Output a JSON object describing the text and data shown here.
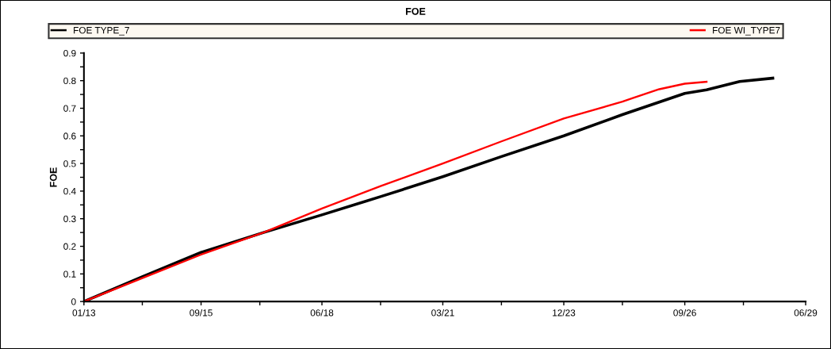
{
  "chart_data": {
    "type": "line",
    "title": "FOE",
    "ylabel": "FOE",
    "series": [
      {
        "name": "FOE TYPE_7",
        "color": "#000000",
        "x": [
          "2013-01",
          "2014-05",
          "2015-09",
          "2017-02",
          "2018-06",
          "2019-10",
          "2021-03",
          "2022-07",
          "2023-12",
          "2025-04",
          "2026-09",
          "2027-03",
          "2027-12",
          "2028-09"
        ],
        "values": [
          0,
          0.09,
          0.178,
          0.25,
          0.314,
          0.38,
          0.452,
          0.525,
          0.6,
          0.677,
          0.754,
          0.767,
          0.797,
          0.809
        ]
      },
      {
        "name": "FOE WI_TYPE7",
        "color": "#ff0000",
        "x": [
          "2013-01",
          "2014-05",
          "2015-09",
          "2017-02",
          "2018-06",
          "2019-10",
          "2021-03",
          "2022-07",
          "2023-12",
          "2025-04",
          "2025-07",
          "2026-02",
          "2026-09",
          "2027-03"
        ],
        "values": [
          0,
          0.085,
          0.17,
          0.25,
          0.337,
          0.418,
          0.5,
          0.58,
          0.663,
          0.724,
          0.738,
          0.769,
          0.789,
          0.796
        ]
      }
    ],
    "xlim": [
      "2013-01",
      "2029-06"
    ],
    "xticks": [
      {
        "value": "2013-01",
        "label": "01/13"
      },
      {
        "value": "2014-05",
        "label": null
      },
      {
        "value": "2015-09",
        "label": "09/15"
      },
      {
        "value": "2017-01",
        "label": null
      },
      {
        "value": "2018-06",
        "label": "06/18"
      },
      {
        "value": "2019-10",
        "label": null
      },
      {
        "value": "2021-03",
        "label": "03/21"
      },
      {
        "value": "2022-07",
        "label": null
      },
      {
        "value": "2023-12",
        "label": "12/23"
      },
      {
        "value": "2025-04",
        "label": null
      },
      {
        "value": "2026-09",
        "label": "09/26"
      },
      {
        "value": "2028-01",
        "label": null
      },
      {
        "value": "2029-06",
        "label": "06/29"
      }
    ],
    "ylim": [
      0,
      0.9
    ],
    "yticks": [
      0,
      {
        "value": 0.05,
        "label": null
      },
      0.1,
      {
        "value": 0.15,
        "label": null
      },
      0.2,
      {
        "value": 0.25,
        "label": null
      },
      0.3,
      {
        "value": 0.35,
        "label": null
      },
      0.4,
      {
        "value": 0.45,
        "label": null
      },
      0.5,
      {
        "value": 0.55,
        "label": null
      },
      0.6,
      {
        "value": 0.65,
        "label": null
      },
      0.7,
      {
        "value": 0.75,
        "label": null
      },
      0.8,
      {
        "value": 0.85,
        "label": null
      },
      0.9
    ],
    "grid": false,
    "legend": "top",
    "marker": "none",
    "line_style": "solid"
  }
}
